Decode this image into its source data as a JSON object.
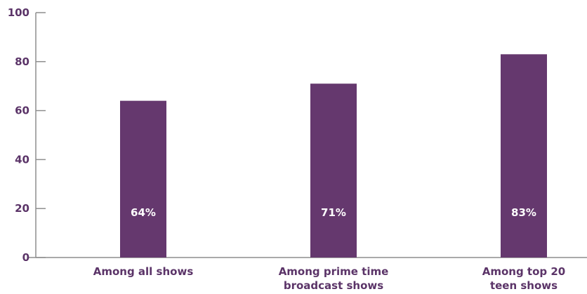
{
  "chart_data": {
    "type": "bar",
    "categories": [
      [
        "Among all shows"
      ],
      [
        "Among prime time",
        "broadcast shows"
      ],
      [
        "Among top 20",
        "teen shows"
      ]
    ],
    "values": [
      64,
      71,
      83
    ],
    "data_labels": [
      "64%",
      "71%",
      "83%"
    ],
    "yticks": [
      0,
      20,
      40,
      60,
      80,
      100
    ],
    "ylim": [
      0,
      100
    ],
    "title": "",
    "xlabel": "",
    "ylabel": "",
    "grid": false,
    "colors": {
      "bar": "#65386e",
      "axis": "#8e8e8e",
      "text": "#5b3468",
      "data_label": "#ffffff"
    }
  }
}
